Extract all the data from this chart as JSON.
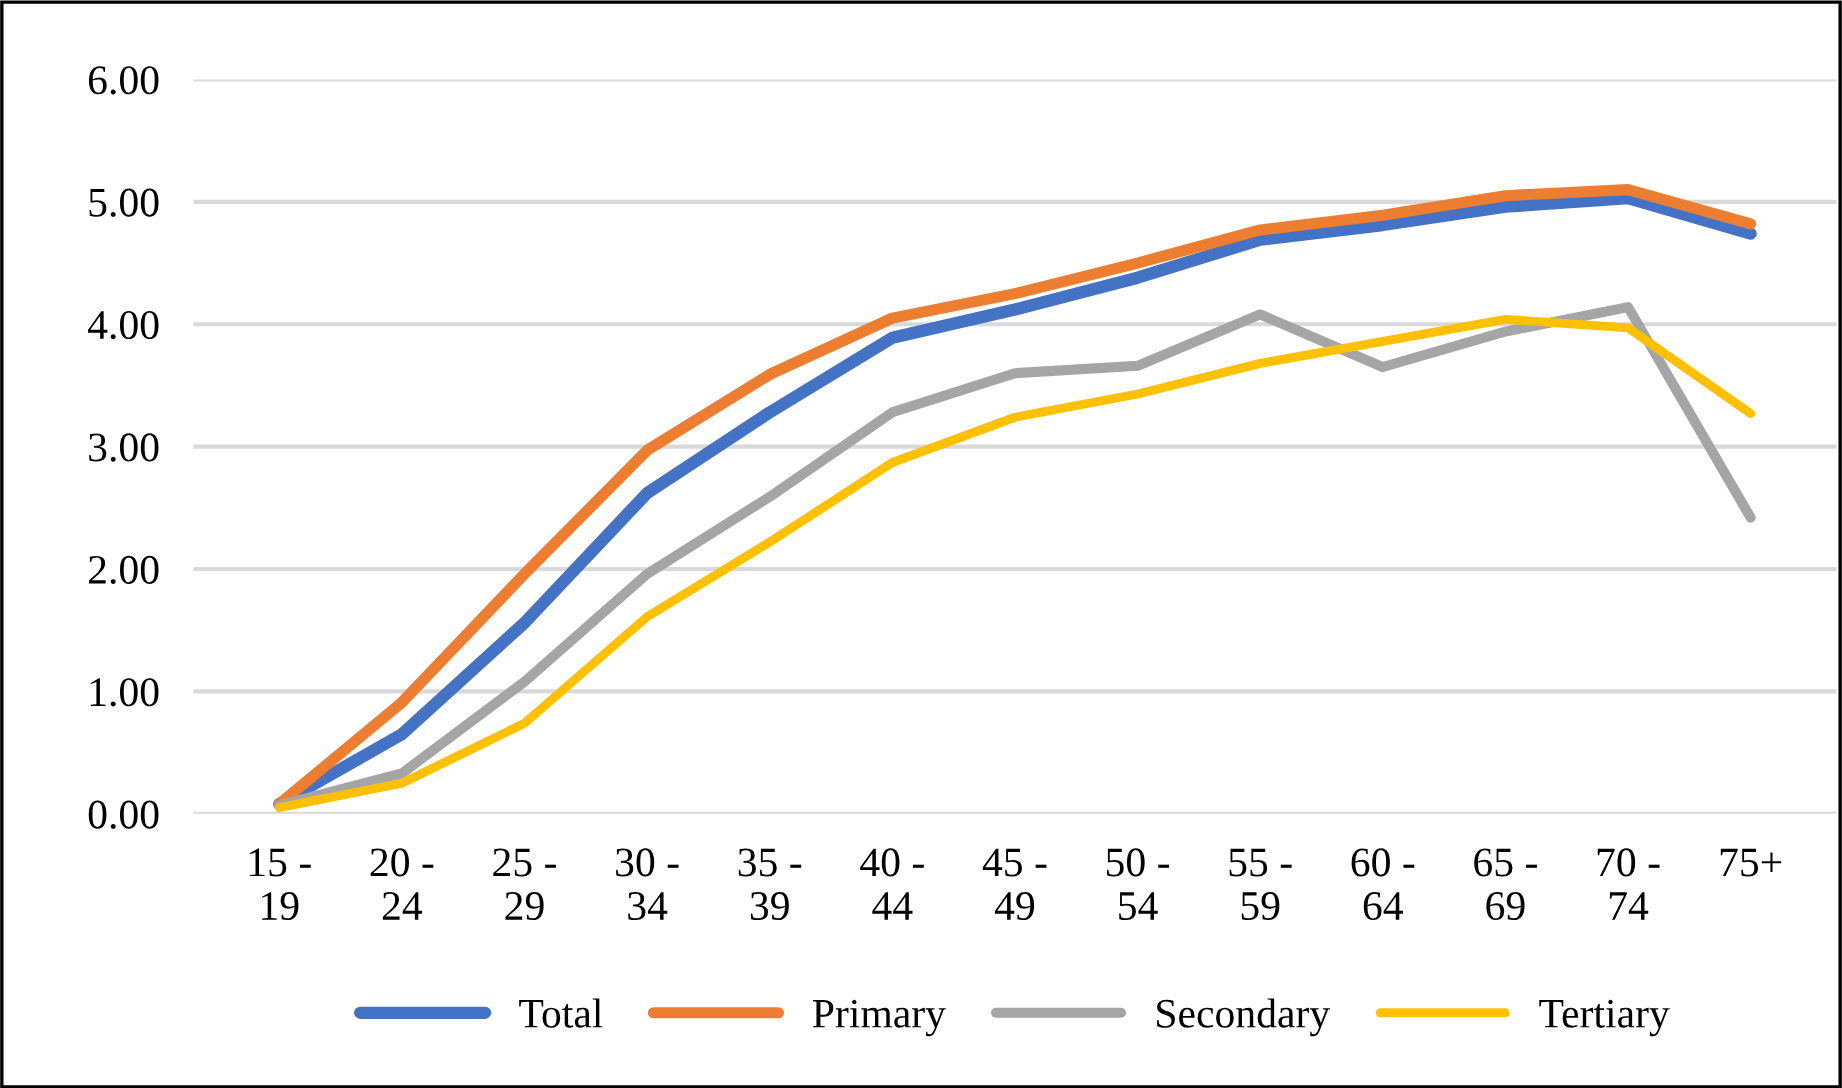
{
  "chart_data": {
    "type": "line",
    "categories": [
      "15 -\n19",
      "20 -\n24",
      "25 -\n29",
      "30 -\n34",
      "35 -\n39",
      "40 -\n44",
      "45 -\n49",
      "50 -\n54",
      "55 -\n59",
      "60 -\n64",
      "65 -\n69",
      "70 -\n74",
      "75+"
    ],
    "series": [
      {
        "name": "Total",
        "color": "#4472c4",
        "values": [
          0.08,
          0.65,
          1.56,
          2.62,
          3.28,
          3.89,
          4.12,
          4.38,
          4.69,
          4.81,
          4.96,
          5.03,
          4.74
        ]
      },
      {
        "name": "Primary",
        "color": "#ed7d31",
        "values": [
          0.08,
          0.91,
          1.96,
          2.97,
          3.59,
          4.05,
          4.25,
          4.5,
          4.77,
          4.89,
          5.05,
          5.1,
          4.82
        ]
      },
      {
        "name": "Secondary",
        "color": "#a5a5a5",
        "values": [
          0.07,
          0.33,
          1.08,
          1.96,
          2.59,
          3.28,
          3.6,
          3.66,
          4.08,
          3.65,
          3.94,
          4.14,
          2.42
        ]
      },
      {
        "name": "Tertiary",
        "color": "#ffc000",
        "values": [
          0.05,
          0.25,
          0.74,
          1.61,
          2.22,
          2.87,
          3.24,
          3.43,
          3.68,
          3.86,
          4.04,
          3.97,
          3.27
        ]
      }
    ],
    "ylim": [
      0,
      6
    ],
    "yticks": [
      {
        "value": 0,
        "label": "0.00"
      },
      {
        "value": 1,
        "label": "1.00"
      },
      {
        "value": 2,
        "label": "2.00"
      },
      {
        "value": 3,
        "label": "3.00"
      },
      {
        "value": 4,
        "label": "4.00"
      },
      {
        "value": 5,
        "label": "5.00"
      },
      {
        "value": 6,
        "label": "6.00"
      }
    ],
    "grid": "y",
    "legend": "bottom",
    "marker": "none",
    "line_style": "solid"
  }
}
